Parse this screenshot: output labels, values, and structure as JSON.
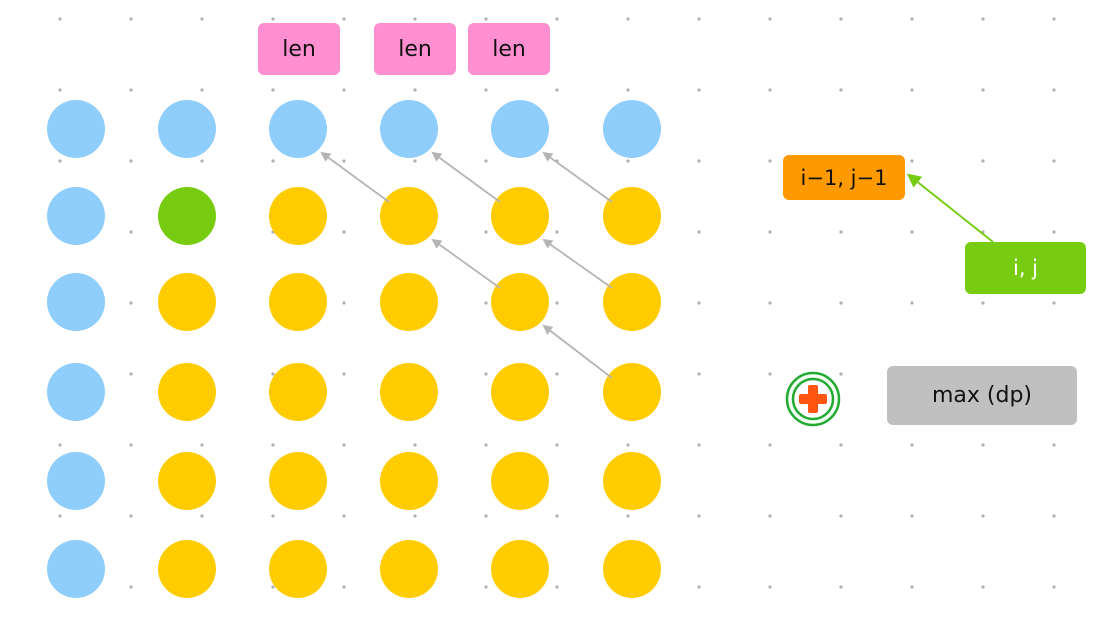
{
  "labels": {
    "len": "len",
    "prev_cell": "i−1, j−1",
    "cur_cell": "i, j",
    "max": "max (dp)"
  },
  "grid": {
    "rows": 6,
    "cols": 6,
    "cells": [
      [
        "blue",
        "blue",
        "blue",
        "blue",
        "blue",
        "blue"
      ],
      [
        "blue",
        "green",
        "yellow",
        "yellow",
        "yellow",
        "yellow"
      ],
      [
        "blue",
        "yellow",
        "yellow",
        "yellow",
        "yellow",
        "yellow"
      ],
      [
        "blue",
        "yellow",
        "yellow",
        "yellow",
        "yellow",
        "yellow"
      ],
      [
        "blue",
        "yellow",
        "yellow",
        "yellow",
        "yellow",
        "yellow"
      ],
      [
        "blue",
        "yellow",
        "yellow",
        "yellow",
        "yellow",
        "yellow"
      ]
    ],
    "len_columns": [
      2,
      3,
      4
    ],
    "arrows": [
      {
        "from": [
          1,
          3
        ],
        "to": [
          0,
          2
        ]
      },
      {
        "from": [
          1,
          4
        ],
        "to": [
          0,
          3
        ]
      },
      {
        "from": [
          1,
          5
        ],
        "to": [
          0,
          4
        ]
      },
      {
        "from": [
          2,
          4
        ],
        "to": [
          1,
          3
        ]
      },
      {
        "from": [
          2,
          5
        ],
        "to": [
          1,
          4
        ]
      },
      {
        "from": [
          3,
          5
        ],
        "to": [
          2,
          4
        ]
      }
    ]
  },
  "colors": {
    "blue": "#8ecdfc",
    "green": "#77cc11",
    "yellow": "#ffcc00",
    "pink": "#ff8fd0",
    "orange": "#ff9900",
    "gray": "#c0c0c0",
    "arrow_gray": "#b5b5b5",
    "arrow_green": "#77cc11",
    "plus_ring": "#22aa33",
    "plus_fill": "#ff5511",
    "dot": "#b0b0b0"
  },
  "icons": {
    "plus": "plus-circle-icon"
  }
}
